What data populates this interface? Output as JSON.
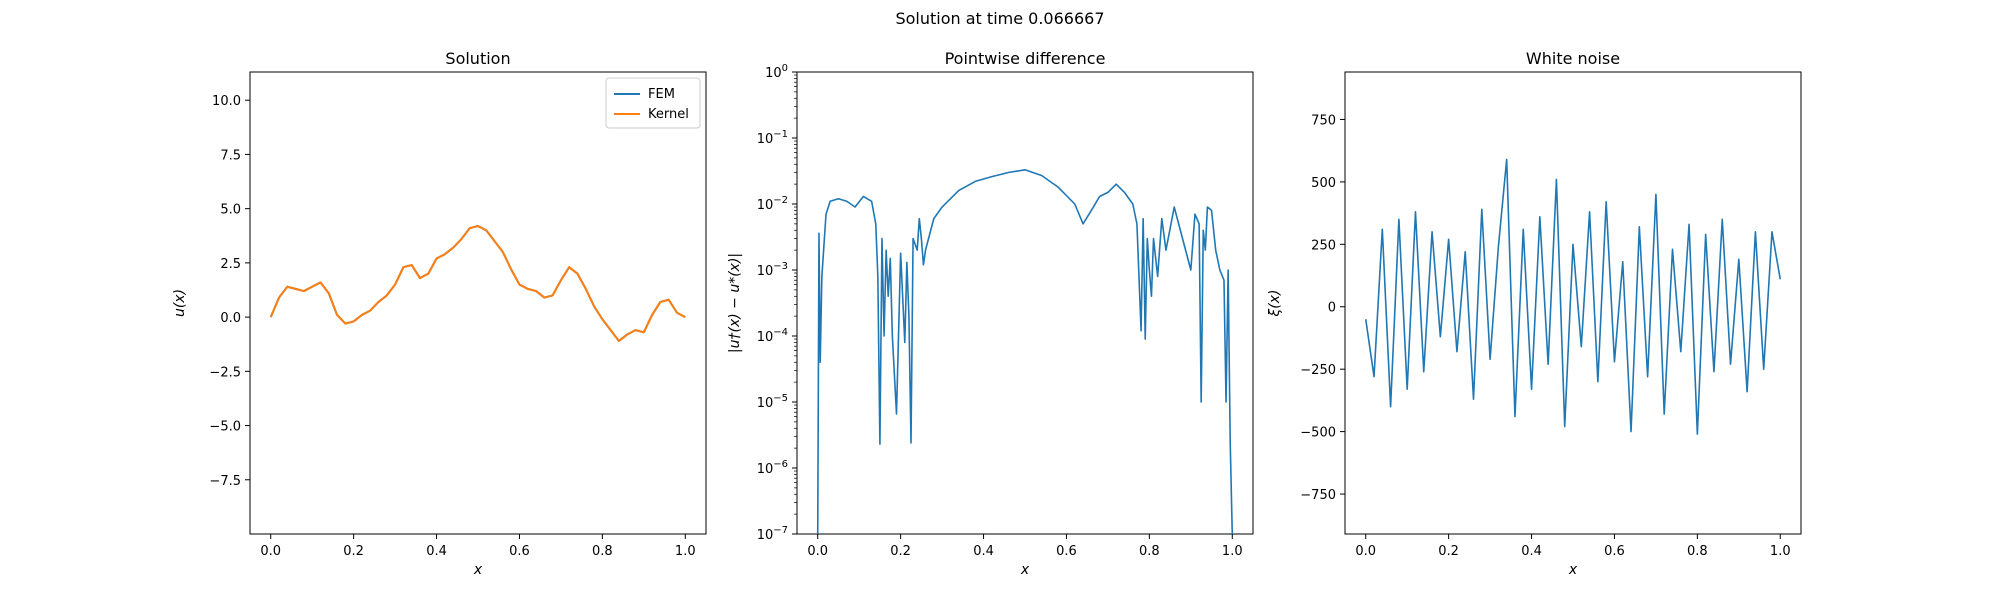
{
  "suptitle": "Solution at time 0.066667",
  "colors": {
    "fem": "#1f77b4",
    "kernel": "#ff7f0e",
    "noise": "#1f77b4",
    "diff": "#1f77b4"
  },
  "chart_data": [
    {
      "type": "line",
      "title": "Solution",
      "xlabel": "x",
      "ylabel": "u(x)",
      "xlim": [
        -0.05,
        1.05
      ],
      "ylim": [
        -10,
        11.3
      ],
      "xticks": [
        0.0,
        0.2,
        0.4,
        0.6,
        0.8,
        1.0
      ],
      "xtick_labels": [
        "0.0",
        "0.2",
        "0.4",
        "0.6",
        "0.8",
        "1.0"
      ],
      "yticks": [
        -7.5,
        -5.0,
        -2.5,
        0.0,
        2.5,
        5.0,
        7.5,
        10.0
      ],
      "ytick_labels": [
        "−7.5",
        "−5.0",
        "−2.5",
        "0.0",
        "2.5",
        "5.0",
        "7.5",
        "10.0"
      ],
      "legend": {
        "position": "top-right",
        "entries": [
          "FEM",
          "Kernel"
        ]
      },
      "x": [
        0.0,
        0.02,
        0.04,
        0.06,
        0.08,
        0.1,
        0.12,
        0.14,
        0.16,
        0.18,
        0.2,
        0.22,
        0.24,
        0.26,
        0.28,
        0.3,
        0.32,
        0.34,
        0.36,
        0.38,
        0.4,
        0.42,
        0.44,
        0.46,
        0.48,
        0.5,
        0.52,
        0.54,
        0.56,
        0.58,
        0.6,
        0.62,
        0.64,
        0.66,
        0.68,
        0.7,
        0.72,
        0.74,
        0.76,
        0.78,
        0.8,
        0.82,
        0.84,
        0.86,
        0.88,
        0.9,
        0.92,
        0.94,
        0.96,
        0.98,
        1.0
      ],
      "series": [
        {
          "name": "FEM",
          "values": [
            0.0,
            0.9,
            1.4,
            1.3,
            1.2,
            1.4,
            1.6,
            1.1,
            0.1,
            -0.3,
            -0.2,
            0.1,
            0.3,
            0.7,
            1.0,
            1.5,
            2.3,
            2.4,
            1.8,
            2.0,
            2.7,
            2.9,
            3.2,
            3.6,
            4.1,
            4.2,
            4.0,
            3.5,
            3.0,
            2.2,
            1.5,
            1.3,
            1.2,
            0.9,
            1.0,
            1.7,
            2.3,
            2.0,
            1.3,
            0.5,
            -0.1,
            -0.6,
            -1.1,
            -0.8,
            -0.6,
            -0.7,
            0.1,
            0.7,
            0.8,
            0.2,
            0.0
          ]
        },
        {
          "name": "Kernel",
          "values": [
            0.0,
            0.9,
            1.4,
            1.3,
            1.2,
            1.4,
            1.6,
            1.1,
            0.1,
            -0.3,
            -0.2,
            0.1,
            0.3,
            0.7,
            1.0,
            1.5,
            2.3,
            2.4,
            1.8,
            2.0,
            2.7,
            2.9,
            3.2,
            3.6,
            4.1,
            4.2,
            4.0,
            3.5,
            3.0,
            2.2,
            1.5,
            1.3,
            1.2,
            0.9,
            1.0,
            1.7,
            2.3,
            2.0,
            1.3,
            0.5,
            -0.1,
            -0.6,
            -1.1,
            -0.8,
            -0.6,
            -0.7,
            0.1,
            0.7,
            0.8,
            0.2,
            0.0
          ]
        }
      ]
    },
    {
      "type": "line",
      "title": "Pointwise difference",
      "xlabel": "x",
      "ylabel": "|u†(x) − u*(x)|",
      "yscale": "log",
      "xlim": [
        -0.05,
        1.05
      ],
      "ylim_exp": [
        -7,
        0
      ],
      "xticks": [
        0.0,
        0.2,
        0.4,
        0.6,
        0.8,
        1.0
      ],
      "xtick_labels": [
        "0.0",
        "0.2",
        "0.4",
        "0.6",
        "0.8",
        "1.0"
      ],
      "ytick_bases": [
        "10",
        "10",
        "10",
        "10",
        "10",
        "10",
        "10",
        "10"
      ],
      "ytick_exps": [
        "−7",
        "−6",
        "−5",
        "−4",
        "−3",
        "−2",
        "−1",
        "0"
      ],
      "x": [
        0.0,
        0.003,
        0.006,
        0.01,
        0.02,
        0.03,
        0.05,
        0.07,
        0.09,
        0.11,
        0.13,
        0.14,
        0.145,
        0.15,
        0.155,
        0.16,
        0.165,
        0.17,
        0.175,
        0.18,
        0.19,
        0.2,
        0.21,
        0.215,
        0.22,
        0.225,
        0.23,
        0.24,
        0.245,
        0.25,
        0.255,
        0.26,
        0.28,
        0.3,
        0.34,
        0.38,
        0.42,
        0.46,
        0.5,
        0.54,
        0.58,
        0.62,
        0.64,
        0.66,
        0.68,
        0.7,
        0.72,
        0.74,
        0.76,
        0.77,
        0.78,
        0.785,
        0.79,
        0.795,
        0.8,
        0.805,
        0.81,
        0.82,
        0.83,
        0.84,
        0.86,
        0.88,
        0.9,
        0.91,
        0.92,
        0.925,
        0.93,
        0.935,
        0.94,
        0.95,
        0.96,
        0.97,
        0.98,
        0.985,
        0.99,
        0.995,
        1.0
      ],
      "values": [
        1e-07,
        0.0036,
        4e-05,
        0.0008,
        0.007,
        0.011,
        0.012,
        0.011,
        0.009,
        0.013,
        0.011,
        0.005,
        0.0008,
        2.3e-06,
        0.003,
        0.0001,
        0.002,
        0.0004,
        0.0015,
        0.0001,
        6.6e-06,
        0.0018,
        8e-05,
        0.0013,
        0.0002,
        2.4e-06,
        0.003,
        0.002,
        0.006,
        0.003,
        0.0012,
        0.002,
        0.006,
        0.009,
        0.016,
        0.022,
        0.026,
        0.03,
        0.033,
        0.027,
        0.018,
        0.01,
        0.005,
        0.008,
        0.013,
        0.015,
        0.02,
        0.015,
        0.01,
        0.005,
        0.00012,
        0.006,
        9e-05,
        0.003,
        0.001,
        0.0004,
        0.003,
        0.0008,
        0.006,
        0.002,
        0.009,
        0.003,
        0.001,
        0.007,
        0.005,
        1e-05,
        0.004,
        0.002,
        0.009,
        0.008,
        0.002,
        0.001,
        0.0007,
        1e-05,
        0.001,
        2.5e-06,
        1e-07
      ]
    },
    {
      "type": "line",
      "title": "White noise",
      "xlabel": "x",
      "ylabel": "ξ(x)",
      "xlim": [
        -0.05,
        1.05
      ],
      "ylim": [
        -910,
        940
      ],
      "xticks": [
        0.0,
        0.2,
        0.4,
        0.6,
        0.8,
        1.0
      ],
      "xtick_labels": [
        "0.0",
        "0.2",
        "0.4",
        "0.6",
        "0.8",
        "1.0"
      ],
      "yticks": [
        -750,
        -500,
        -250,
        0,
        250,
        500,
        750
      ],
      "ytick_labels": [
        "−750",
        "−500",
        "−250",
        "0",
        "250",
        "500",
        "750"
      ],
      "x": [
        0.0,
        0.02,
        0.04,
        0.06,
        0.08,
        0.1,
        0.12,
        0.14,
        0.16,
        0.18,
        0.2,
        0.22,
        0.24,
        0.26,
        0.28,
        0.3,
        0.32,
        0.34,
        0.36,
        0.38,
        0.4,
        0.42,
        0.44,
        0.46,
        0.48,
        0.5,
        0.52,
        0.54,
        0.56,
        0.58,
        0.6,
        0.62,
        0.64,
        0.66,
        0.68,
        0.7,
        0.72,
        0.74,
        0.76,
        0.78,
        0.8,
        0.82,
        0.84,
        0.86,
        0.88,
        0.9,
        0.92,
        0.94,
        0.96,
        0.98,
        1.0
      ],
      "values": [
        -50,
        -280,
        310,
        -400,
        350,
        -330,
        380,
        -260,
        300,
        -120,
        270,
        -180,
        220,
        -370,
        390,
        -210,
        240,
        590,
        -440,
        310,
        -330,
        360,
        -230,
        510,
        -480,
        250,
        -160,
        380,
        -300,
        420,
        -220,
        180,
        -500,
        320,
        -280,
        450,
        -430,
        230,
        -180,
        330,
        -510,
        290,
        -260,
        350,
        -230,
        190,
        -340,
        300,
        -250,
        300,
        110
      ]
    }
  ]
}
